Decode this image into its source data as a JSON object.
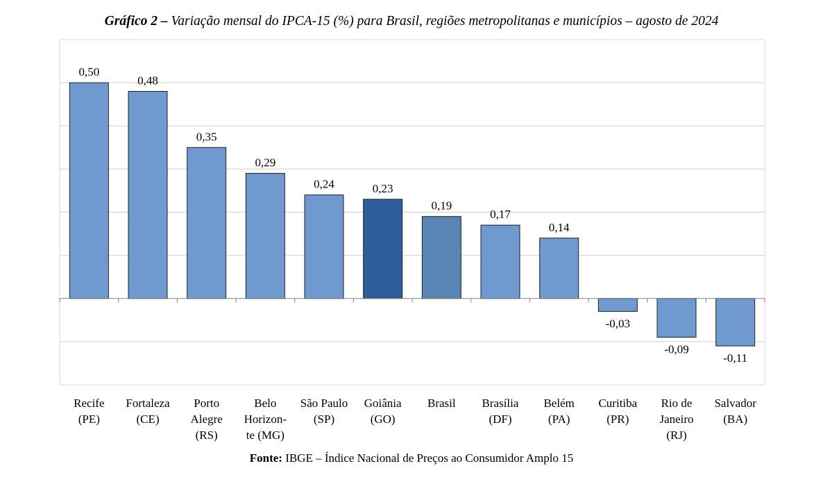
{
  "title": {
    "prefix": "Gráfico 2 –",
    "text": "Variação mensal do IPCA-15 (%) para Brasil, regiões metropolitanas e municípios – agosto de 2024"
  },
  "source": {
    "label": "Fonte:",
    "text": "IBGE – Índice Nacional de Preços ao Consumidor Amplo 15"
  },
  "colors": {
    "regular_bar": "#7099cf",
    "highlight_goiania": "#2e5e99",
    "highlight_brasil": "#5a84b4",
    "bar_outline": "#1f1f1f",
    "grid": "#d0d0d0",
    "axis": "#808080"
  },
  "chart_data": {
    "type": "bar",
    "categories": [
      "Recife (PE)",
      "Fortaleza (CE)",
      "Porto Alegre (RS)",
      "Belo Horizonte (MG)",
      "São Paulo (SP)",
      "Goiânia (GO)",
      "Brasil",
      "Brasília (DF)",
      "Belém (PA)",
      "Curitiba (PR)",
      "Rio de Janeiro (RJ)",
      "Salvador (BA)"
    ],
    "category_label_lines": [
      [
        "Recife",
        "(PE)"
      ],
      [
        "Fortaleza",
        "(CE)"
      ],
      [
        "Porto",
        "Alegre",
        "(RS)"
      ],
      [
        "Belo",
        "Horizon-",
        "te (MG)"
      ],
      [
        "São Paulo",
        "(SP)"
      ],
      [
        "Goiânia",
        "(GO)"
      ],
      [
        "Brasil"
      ],
      [
        "Brasília",
        "(DF)"
      ],
      [
        "Belém",
        "(PA)"
      ],
      [
        "Curitiba",
        "(PR)"
      ],
      [
        "Rio de",
        "Janeiro",
        "(RJ)"
      ],
      [
        "Salvador",
        "(BA)"
      ]
    ],
    "values": [
      0.5,
      0.48,
      0.35,
      0.29,
      0.24,
      0.23,
      0.19,
      0.17,
      0.14,
      -0.03,
      -0.09,
      -0.11
    ],
    "data_labels": [
      "0,50",
      "0,48",
      "0,35",
      "0,29",
      "0,24",
      "0,23",
      "0,19",
      "0,17",
      "0,14",
      "-0,03",
      "-0,09",
      "-0,11"
    ],
    "highlight": {
      "Goiânia (GO)": "highlight_goiania",
      "Brasil": "highlight_brasil"
    },
    "ylim": [
      -0.2,
      0.6
    ],
    "grid_step": 0.1,
    "grid": true,
    "y_tick_labels_shown": false,
    "legend": "none"
  }
}
